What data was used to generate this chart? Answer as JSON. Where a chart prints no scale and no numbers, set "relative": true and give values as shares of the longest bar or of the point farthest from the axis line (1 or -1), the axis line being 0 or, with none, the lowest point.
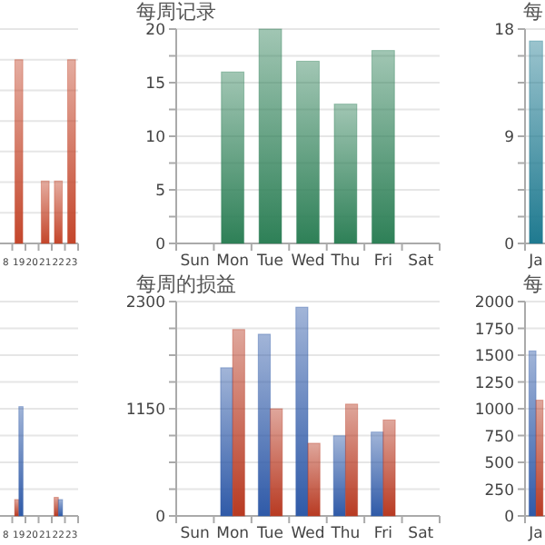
{
  "chart_data": [
    {
      "type": "bar",
      "relative": true,
      "grid": "y",
      "categories": [
        null,
        null,
        null,
        null,
        null,
        null,
        null,
        null,
        null,
        null,
        null,
        null,
        null,
        null,
        null,
        null,
        null,
        null,
        "8",
        "19",
        "20",
        "21",
        "22",
        "23"
      ],
      "series": [
        {
          "color": "#c4462b",
          "values": [
            null,
            null,
            null,
            null,
            null,
            null,
            null,
            null,
            null,
            null,
            null,
            null,
            null,
            null,
            null,
            null,
            null,
            null,
            null,
            1,
            null,
            0.34,
            0.34,
            1
          ]
        }
      ]
    },
    {
      "type": "bar",
      "title": "每周记录",
      "grid": "y",
      "categories": [
        "Sun",
        "Mon",
        "Tue",
        "Wed",
        "Thu",
        "Fri",
        "Sat"
      ],
      "ylim": [
        0,
        20
      ],
      "yticks": [
        0,
        {
          "value": 2.5,
          "label": null
        },
        5,
        {
          "value": 7.5,
          "label": null
        },
        10,
        {
          "value": 12.5,
          "label": null
        },
        15,
        {
          "value": 17.5,
          "label": null
        },
        20
      ],
      "series": [
        {
          "color": "#2e8057",
          "values": [
            null,
            16,
            20,
            17,
            13,
            18,
            null
          ]
        }
      ]
    },
    {
      "type": "bar",
      "title": "每",
      "grid": "y",
      "categories": [
        "Ja",
        null,
        null,
        null,
        null,
        null,
        null,
        null,
        null,
        null,
        null,
        null
      ],
      "ylim": [
        0,
        18
      ],
      "yticks": [
        0,
        {
          "value": 2.25,
          "label": null
        },
        {
          "value": 4.5,
          "label": null
        },
        {
          "value": 6.75,
          "label": null
        },
        9,
        {
          "value": 11.25,
          "label": null
        },
        {
          "value": 13.5,
          "label": null
        },
        {
          "value": 15.75,
          "label": null
        },
        18
      ],
      "series": [
        {
          "color": "#1f7a90",
          "values": [
            17,
            null,
            null,
            null,
            null,
            null,
            null,
            null,
            null,
            null,
            null,
            null
          ]
        }
      ]
    },
    {
      "type": "bar",
      "relative": true,
      "grid": "y",
      "categories": [
        null,
        null,
        null,
        null,
        null,
        null,
        null,
        null,
        null,
        null,
        null,
        null,
        null,
        null,
        null,
        null,
        null,
        null,
        "8",
        "19",
        "20",
        "21",
        "22",
        "23"
      ],
      "series": [
        {
          "color": "#b83a22",
          "values": [
            null,
            null,
            null,
            null,
            null,
            null,
            null,
            null,
            null,
            null,
            null,
            null,
            null,
            null,
            null,
            null,
            null,
            null,
            null,
            0.15,
            null,
            null,
            0.17,
            null
          ]
        },
        {
          "color": "#2f5aa8",
          "values": [
            null,
            null,
            null,
            null,
            null,
            null,
            null,
            null,
            null,
            null,
            null,
            null,
            null,
            null,
            null,
            null,
            null,
            null,
            null,
            1,
            null,
            null,
            0.15,
            null
          ]
        }
      ]
    },
    {
      "type": "bar",
      "title": "每周的损益",
      "grid": "y",
      "categories": [
        "Sun",
        "Mon",
        "Tue",
        "Wed",
        "Thu",
        "Fri",
        "Sat"
      ],
      "ylim": [
        0,
        2300
      ],
      "yticks": [
        0,
        {
          "value": 287.5,
          "label": null
        },
        {
          "value": 575,
          "label": null
        },
        {
          "value": 862.5,
          "label": null
        },
        1150,
        {
          "value": 1437.5,
          "label": null
        },
        {
          "value": 1725,
          "label": null
        },
        {
          "value": 2012.5,
          "label": null
        },
        2300
      ],
      "series": [
        {
          "color": "#2f5aa8",
          "values": [
            null,
            1590,
            1950,
            2240,
            860,
            900,
            null
          ]
        },
        {
          "color": "#b83a22",
          "values": [
            null,
            2000,
            1150,
            780,
            1200,
            1030,
            null
          ]
        }
      ]
    },
    {
      "type": "bar",
      "title": "每",
      "grid": "y",
      "categories": [
        "Ja",
        null,
        null,
        null,
        null,
        null,
        null,
        null,
        null,
        null,
        null,
        null
      ],
      "ylim": [
        0,
        2000
      ],
      "yticks": [
        0,
        250,
        500,
        750,
        1000,
        1250,
        1500,
        1750,
        2000
      ],
      "series": [
        {
          "color": "#2f5aa8",
          "values": [
            1540,
            null,
            null,
            null,
            null,
            null,
            null,
            null,
            null,
            null,
            null,
            null
          ]
        },
        {
          "color": "#b83a22",
          "values": [
            1080,
            null,
            null,
            null,
            null,
            null,
            null,
            null,
            null,
            null,
            null,
            null
          ]
        }
      ]
    }
  ]
}
